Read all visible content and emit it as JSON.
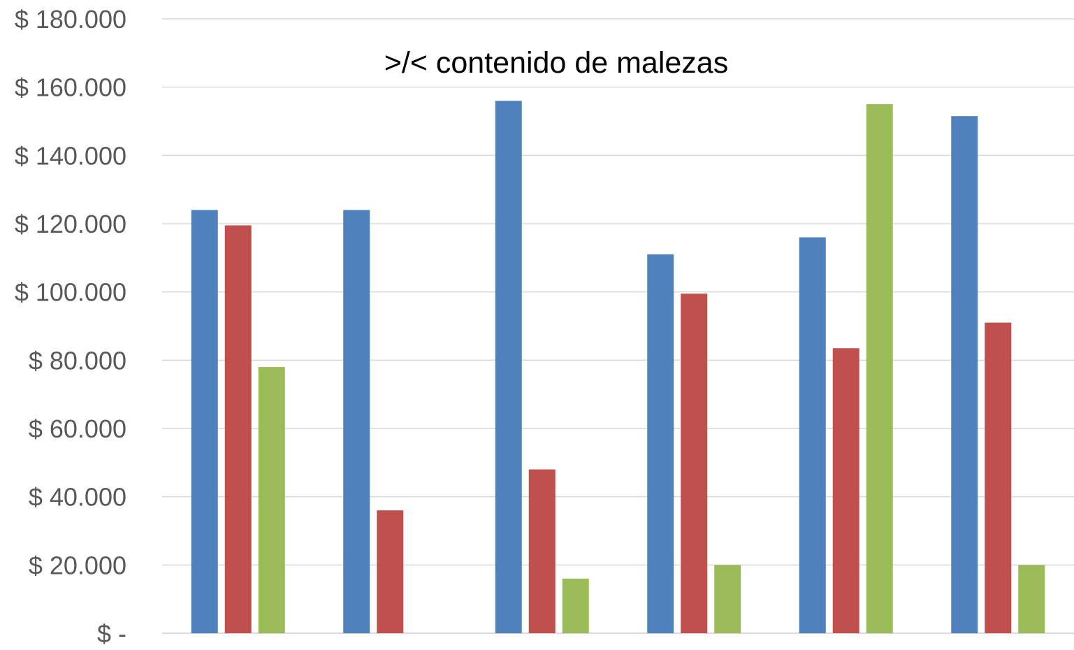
{
  "chart_data": {
    "type": "bar",
    "title": ">/< contenido de malezas",
    "xlabel": "",
    "ylabel": "",
    "ylim": [
      0,
      180000
    ],
    "y_ticks": [
      0,
      20000,
      40000,
      60000,
      80000,
      100000,
      120000,
      140000,
      160000,
      180000
    ],
    "y_tick_labels": [
      "$ -",
      "$ 20.000",
      "$ 40.000",
      "$ 60.000",
      "$ 80.000",
      "$ 100.000",
      "$ 120.000",
      "$ 140.000",
      "$ 160.000",
      "$ 180.000"
    ],
    "categories": [
      "",
      "",
      "",
      "",
      "",
      ""
    ],
    "grid": true,
    "legend": "none",
    "series": [
      {
        "color": "#4F81BD",
        "values": [
          124000,
          124000,
          156000,
          111000,
          116000,
          151500
        ]
      },
      {
        "color": "#C0504D",
        "values": [
          119500,
          36000,
          48000,
          99500,
          83500,
          91000
        ]
      },
      {
        "color": "#9BBB59",
        "values": [
          78000,
          null,
          16000,
          20000,
          155000,
          20000
        ]
      }
    ]
  }
}
